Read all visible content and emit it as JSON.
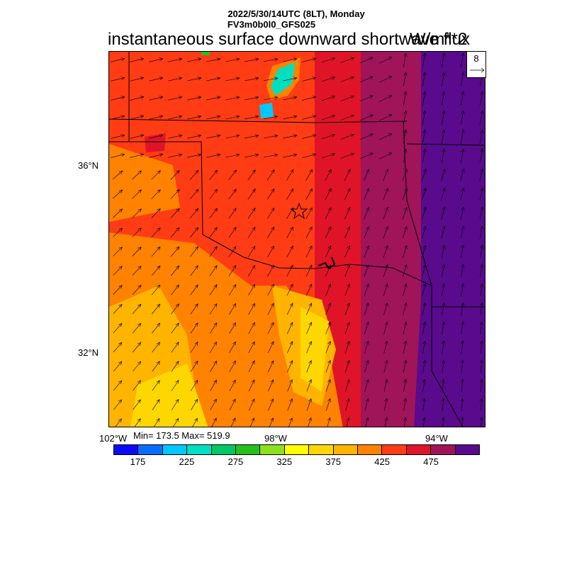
{
  "header": {
    "time_line": "2022/5/30/14UTC (8LT), Monday",
    "model_line": "FV3m0b0l0_GFS025",
    "title": "instantaneous surface downward shortwave flux",
    "units": "W/m**2"
  },
  "axes": {
    "lat_labels": [
      "36°N",
      "32°N"
    ],
    "lon_labels": [
      "102°W",
      "98°W",
      "94°W"
    ]
  },
  "stats": {
    "text": "Min= 173.5 Max= 519.9"
  },
  "reference_vector": {
    "value": "8"
  },
  "colorbar": {
    "colors": [
      "#0a0aff",
      "#0a6cff",
      "#00c8ff",
      "#00e0c0",
      "#00c864",
      "#28be1e",
      "#8ce01e",
      "#ffff00",
      "#ffd700",
      "#ffb400",
      "#ff8200",
      "#ff3c14",
      "#e01428",
      "#a0145a",
      "#5a0a8c"
    ],
    "labels": [
      "175",
      "225",
      "275",
      "325",
      "375",
      "425",
      "475"
    ]
  },
  "icons": {
    "location_marker": "star-icon",
    "vector_arrows": "arrow-icon"
  }
}
